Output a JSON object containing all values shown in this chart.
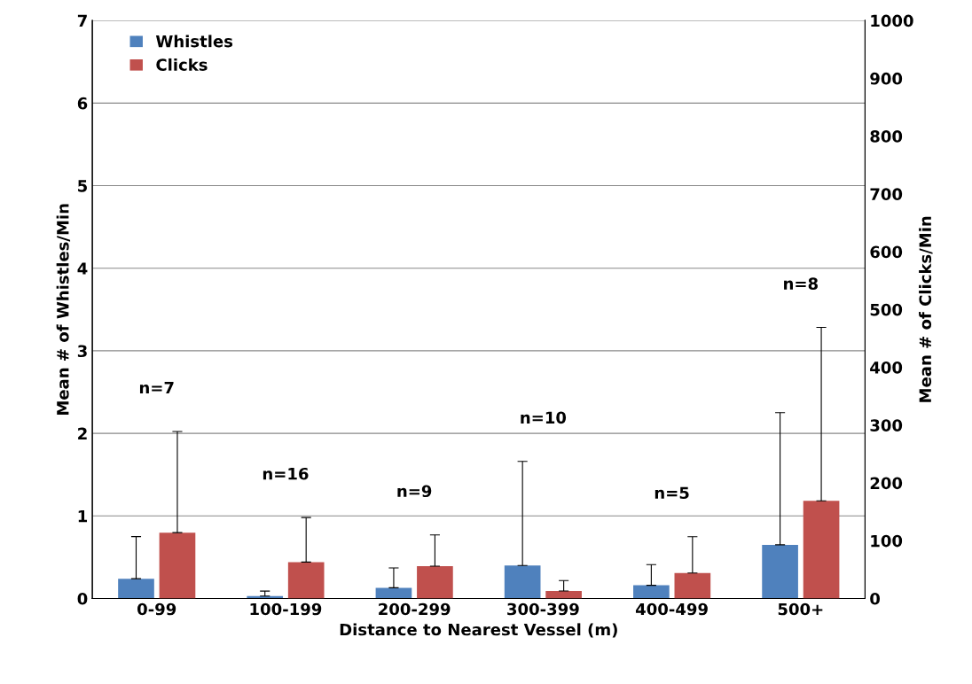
{
  "chart_data": {
    "type": "bar",
    "xlabel": "Distance to Nearest Vessel (m)",
    "ylabel": "Mean # of Whistles/Min",
    "y2label": "Mean # of Clicks/Min",
    "categories": [
      "0-99",
      "100-199",
      "200-299",
      "300-399",
      "400-499",
      "500+"
    ],
    "series": [
      {
        "name": "Whistles",
        "color": "#4f81bd",
        "values": [
          0.24,
          0.03,
          0.13,
          0.4,
          0.16,
          0.65
        ],
        "errors": [
          [
            0.24,
            0.75
          ],
          [
            0.03,
            0.09
          ],
          [
            0.13,
            0.37
          ],
          [
            0.4,
            1.66
          ],
          [
            0.16,
            0.41
          ],
          [
            0.65,
            2.25
          ]
        ]
      },
      {
        "name": "Clicks",
        "color": "#c0504d",
        "axis": "y2",
        "values": [
          114,
          63,
          56,
          13,
          44,
          169
        ],
        "errors": [
          [
            114,
            289
          ],
          [
            63,
            140
          ],
          [
            56,
            110
          ],
          [
            13,
            31
          ],
          [
            44,
            107
          ],
          [
            169,
            469
          ]
        ]
      }
    ],
    "ylim": [
      0,
      7
    ],
    "yticks": [
      0,
      1,
      2,
      3,
      4,
      5,
      6,
      7
    ],
    "y2lim": [
      0,
      1000
    ],
    "y2ticks": [
      0,
      100,
      200,
      300,
      400,
      500,
      600,
      700,
      800,
      900,
      1000
    ],
    "grid": "y",
    "legend": "top left",
    "annotations": [
      "n=7",
      "n=16",
      "n=9",
      "n=10",
      "n=5",
      "n=8"
    ]
  }
}
